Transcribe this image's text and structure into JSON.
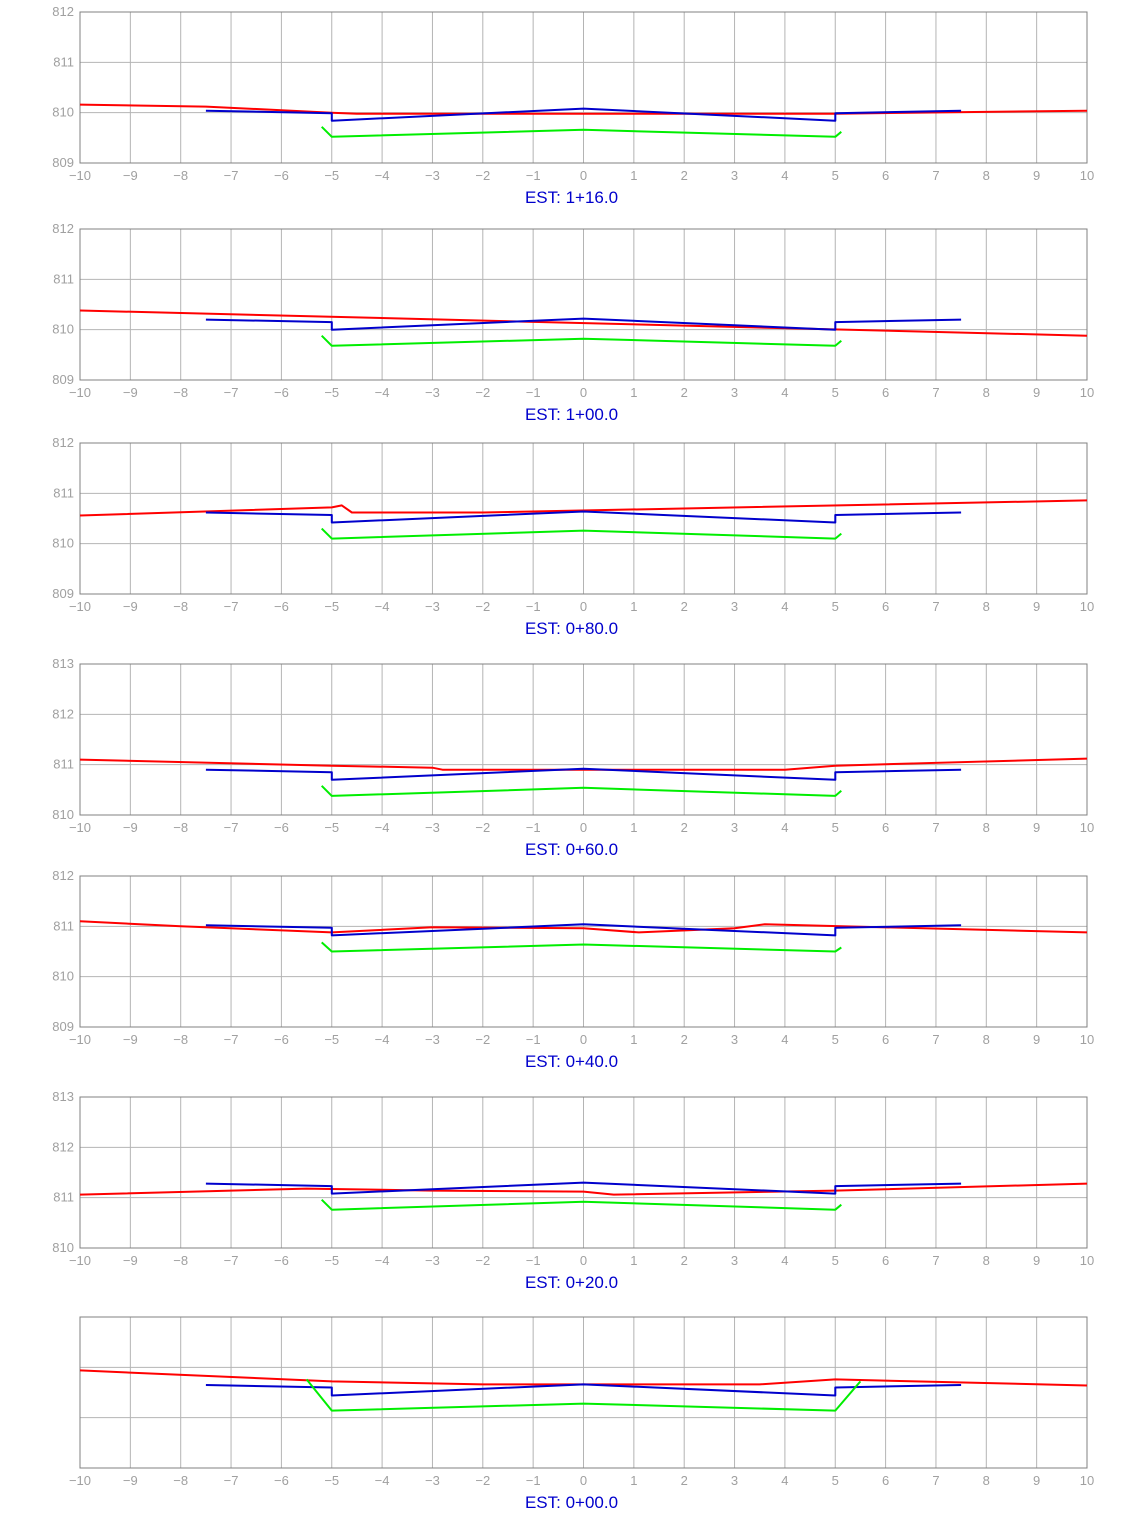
{
  "station_prefix": "EST:",
  "colors": {
    "grid": "#b4b4b4",
    "frame": "#808080",
    "terrain": "#ff0000",
    "subgrade": "#0000cc",
    "pavement": "#00ee00",
    "station_text": "#0000cc",
    "tick_text": "#a0a0a0"
  },
  "chart_data": [
    {
      "type": "line",
      "station": "1+16.0",
      "xlim": [
        -10,
        10
      ],
      "ylim": [
        809,
        812
      ],
      "x_ticks": [
        -10,
        -9,
        -8,
        -7,
        -6,
        -5,
        -4,
        -3,
        -2,
        -1,
        0,
        1,
        2,
        3,
        4,
        5,
        6,
        7,
        8,
        9,
        10
      ],
      "y_ticks": [
        809,
        810,
        811,
        812
      ],
      "grid": true,
      "series": [
        {
          "color": "#ff0000",
          "points": [
            [
              -10,
              810.16
            ],
            [
              -7.5,
              810.12
            ],
            [
              -5,
              810.0
            ],
            [
              -4.5,
              809.98
            ],
            [
              5,
              809.98
            ],
            [
              10,
              810.04
            ]
          ]
        },
        {
          "color": "#0000cc",
          "points": [
            [
              -7.5,
              810.04
            ],
            [
              -5,
              809.99
            ],
            [
              -5,
              809.84
            ],
            [
              0,
              810.08
            ],
            [
              5,
              809.84
            ],
            [
              5,
              809.99
            ],
            [
              7.5,
              810.04
            ]
          ]
        },
        {
          "color": "#00ee00",
          "points": [
            [
              -5.2,
              809.72
            ],
            [
              -5,
              809.52
            ],
            [
              0,
              809.66
            ],
            [
              5,
              809.52
            ],
            [
              5.12,
              809.62
            ]
          ]
        }
      ]
    },
    {
      "type": "line",
      "station": "1+00.0",
      "xlim": [
        -10,
        10
      ],
      "ylim": [
        809,
        812
      ],
      "x_ticks": [
        -10,
        -9,
        -8,
        -7,
        -6,
        -5,
        -4,
        -3,
        -2,
        -1,
        0,
        1,
        2,
        3,
        4,
        5,
        6,
        7,
        8,
        9,
        10
      ],
      "y_ticks": [
        809,
        810,
        811,
        812
      ],
      "grid": true,
      "series": [
        {
          "color": "#ff0000",
          "points": [
            [
              -10,
              810.38
            ],
            [
              10,
              809.88
            ]
          ]
        },
        {
          "color": "#0000cc",
          "points": [
            [
              -7.5,
              810.2
            ],
            [
              -5,
              810.15
            ],
            [
              -5,
              810.0
            ],
            [
              0,
              810.22
            ],
            [
              5,
              810.0
            ],
            [
              5,
              810.15
            ],
            [
              7.5,
              810.2
            ]
          ]
        },
        {
          "color": "#00ee00",
          "points": [
            [
              -5.2,
              809.88
            ],
            [
              -5,
              809.68
            ],
            [
              0,
              809.82
            ],
            [
              5,
              809.68
            ],
            [
              5.12,
              809.78
            ]
          ]
        }
      ]
    },
    {
      "type": "line",
      "station": "0+80.0",
      "xlim": [
        -10,
        10
      ],
      "ylim": [
        809,
        812
      ],
      "x_ticks": [
        -10,
        -9,
        -8,
        -7,
        -6,
        -5,
        -4,
        -3,
        -2,
        -1,
        0,
        1,
        2,
        3,
        4,
        5,
        6,
        7,
        8,
        9,
        10
      ],
      "y_ticks": [
        809,
        810,
        811,
        812
      ],
      "grid": true,
      "series": [
        {
          "color": "#ff0000",
          "points": [
            [
              -10,
              810.56
            ],
            [
              -5,
              810.72
            ],
            [
              -4.8,
              810.76
            ],
            [
              -4.6,
              810.62
            ],
            [
              -2,
              810.62
            ],
            [
              10,
              810.86
            ]
          ]
        },
        {
          "color": "#0000cc",
          "points": [
            [
              -7.5,
              810.62
            ],
            [
              -5,
              810.57
            ],
            [
              -5,
              810.42
            ],
            [
              0,
              810.64
            ],
            [
              5,
              810.42
            ],
            [
              5,
              810.57
            ],
            [
              7.5,
              810.62
            ]
          ]
        },
        {
          "color": "#00ee00",
          "points": [
            [
              -5.2,
              810.3
            ],
            [
              -5,
              810.1
            ],
            [
              0,
              810.26
            ],
            [
              5,
              810.1
            ],
            [
              5.12,
              810.2
            ]
          ]
        }
      ]
    },
    {
      "type": "line",
      "station": "0+60.0",
      "xlim": [
        -10,
        10
      ],
      "ylim": [
        810,
        813
      ],
      "x_ticks": [
        -10,
        -9,
        -8,
        -7,
        -6,
        -5,
        -4,
        -3,
        -2,
        -1,
        0,
        1,
        2,
        3,
        4,
        5,
        6,
        7,
        8,
        9,
        10
      ],
      "y_ticks": [
        810,
        811,
        812,
        813
      ],
      "grid": true,
      "series": [
        {
          "color": "#ff0000",
          "points": [
            [
              -10,
              811.1
            ],
            [
              -5,
              810.98
            ],
            [
              -3,
              810.94
            ],
            [
              -2.8,
              810.9
            ],
            [
              4,
              810.9
            ],
            [
              5,
              810.98
            ],
            [
              10,
              811.12
            ]
          ]
        },
        {
          "color": "#0000cc",
          "points": [
            [
              -7.5,
              810.9
            ],
            [
              -5,
              810.85
            ],
            [
              -5,
              810.7
            ],
            [
              0,
              810.92
            ],
            [
              5,
              810.7
            ],
            [
              5,
              810.85
            ],
            [
              7.5,
              810.9
            ]
          ]
        },
        {
          "color": "#00ee00",
          "points": [
            [
              -5.2,
              810.58
            ],
            [
              -5,
              810.38
            ],
            [
              0,
              810.54
            ],
            [
              5,
              810.38
            ],
            [
              5.12,
              810.48
            ]
          ]
        }
      ]
    },
    {
      "type": "line",
      "station": "0+40.0",
      "xlim": [
        -10,
        10
      ],
      "ylim": [
        809,
        812
      ],
      "x_ticks": [
        -10,
        -9,
        -8,
        -7,
        -6,
        -5,
        -4,
        -3,
        -2,
        -1,
        0,
        1,
        2,
        3,
        4,
        5,
        6,
        7,
        8,
        9,
        10
      ],
      "y_ticks": [
        809,
        810,
        811,
        812
      ],
      "grid": true,
      "series": [
        {
          "color": "#ff0000",
          "points": [
            [
              -10,
              811.1
            ],
            [
              -8,
              811.0
            ],
            [
              -5,
              810.88
            ],
            [
              -3,
              810.98
            ],
            [
              0,
              810.96
            ],
            [
              1.1,
              810.88
            ],
            [
              3,
              810.96
            ],
            [
              3.6,
              811.04
            ],
            [
              10,
              810.88
            ]
          ]
        },
        {
          "color": "#0000cc",
          "points": [
            [
              -7.5,
              811.02
            ],
            [
              -5,
              810.97
            ],
            [
              -5,
              810.82
            ],
            [
              0,
              811.04
            ],
            [
              5,
              810.82
            ],
            [
              5,
              810.97
            ],
            [
              7.5,
              811.02
            ]
          ]
        },
        {
          "color": "#00ee00",
          "points": [
            [
              -5.2,
              810.68
            ],
            [
              -5,
              810.5
            ],
            [
              0,
              810.64
            ],
            [
              5,
              810.5
            ],
            [
              5.12,
              810.58
            ]
          ]
        }
      ]
    },
    {
      "type": "line",
      "station": "0+20.0",
      "xlim": [
        -10,
        10
      ],
      "ylim": [
        810,
        813
      ],
      "x_ticks": [
        -10,
        -9,
        -8,
        -7,
        -6,
        -5,
        -4,
        -3,
        -2,
        -1,
        0,
        1,
        2,
        3,
        4,
        5,
        6,
        7,
        8,
        9,
        10
      ],
      "y_ticks": [
        810,
        811,
        812,
        813
      ],
      "grid": true,
      "series": [
        {
          "color": "#ff0000",
          "points": [
            [
              -10,
              811.06
            ],
            [
              -5.5,
              811.18
            ],
            [
              -3,
              811.14
            ],
            [
              0,
              811.12
            ],
            [
              0.6,
              811.06
            ],
            [
              5,
              811.14
            ],
            [
              10,
              811.28
            ]
          ]
        },
        {
          "color": "#0000cc",
          "points": [
            [
              -7.5,
              811.28
            ],
            [
              -5,
              811.23
            ],
            [
              -5,
              811.08
            ],
            [
              0,
              811.3
            ],
            [
              5,
              811.08
            ],
            [
              5,
              811.23
            ],
            [
              7.5,
              811.28
            ]
          ]
        },
        {
          "color": "#00ee00",
          "points": [
            [
              -5.2,
              810.96
            ],
            [
              -5,
              810.76
            ],
            [
              0,
              810.92
            ],
            [
              5,
              810.76
            ],
            [
              5.12,
              810.86
            ]
          ]
        }
      ]
    },
    {
      "type": "line",
      "station": "0+00.0",
      "xlim": [
        -10,
        10
      ],
      "ylim": [
        809,
        812
      ],
      "x_ticks": [
        -10,
        -9,
        -8,
        -7,
        -6,
        -5,
        -4,
        -3,
        -2,
        -1,
        0,
        1,
        2,
        3,
        4,
        5,
        6,
        7,
        8,
        9,
        10
      ],
      "y_ticks": [],
      "grid": true,
      "series": [
        {
          "color": "#ff0000",
          "points": [
            [
              -10,
              810.94
            ],
            [
              -5,
              810.72
            ],
            [
              -2,
              810.66
            ],
            [
              3.5,
              810.66
            ],
            [
              5,
              810.76
            ],
            [
              10,
              810.64
            ]
          ]
        },
        {
          "color": "#0000cc",
          "points": [
            [
              -7.5,
              810.65
            ],
            [
              -5,
              810.6
            ],
            [
              -5,
              810.44
            ],
            [
              0,
              810.66
            ],
            [
              5,
              810.44
            ],
            [
              5,
              810.6
            ],
            [
              7.5,
              810.65
            ]
          ]
        },
        {
          "color": "#00ee00",
          "points": [
            [
              -5.5,
              810.76
            ],
            [
              -5,
              810.14
            ],
            [
              0,
              810.28
            ],
            [
              5,
              810.14
            ],
            [
              5.5,
              810.72
            ]
          ]
        }
      ]
    }
  ]
}
